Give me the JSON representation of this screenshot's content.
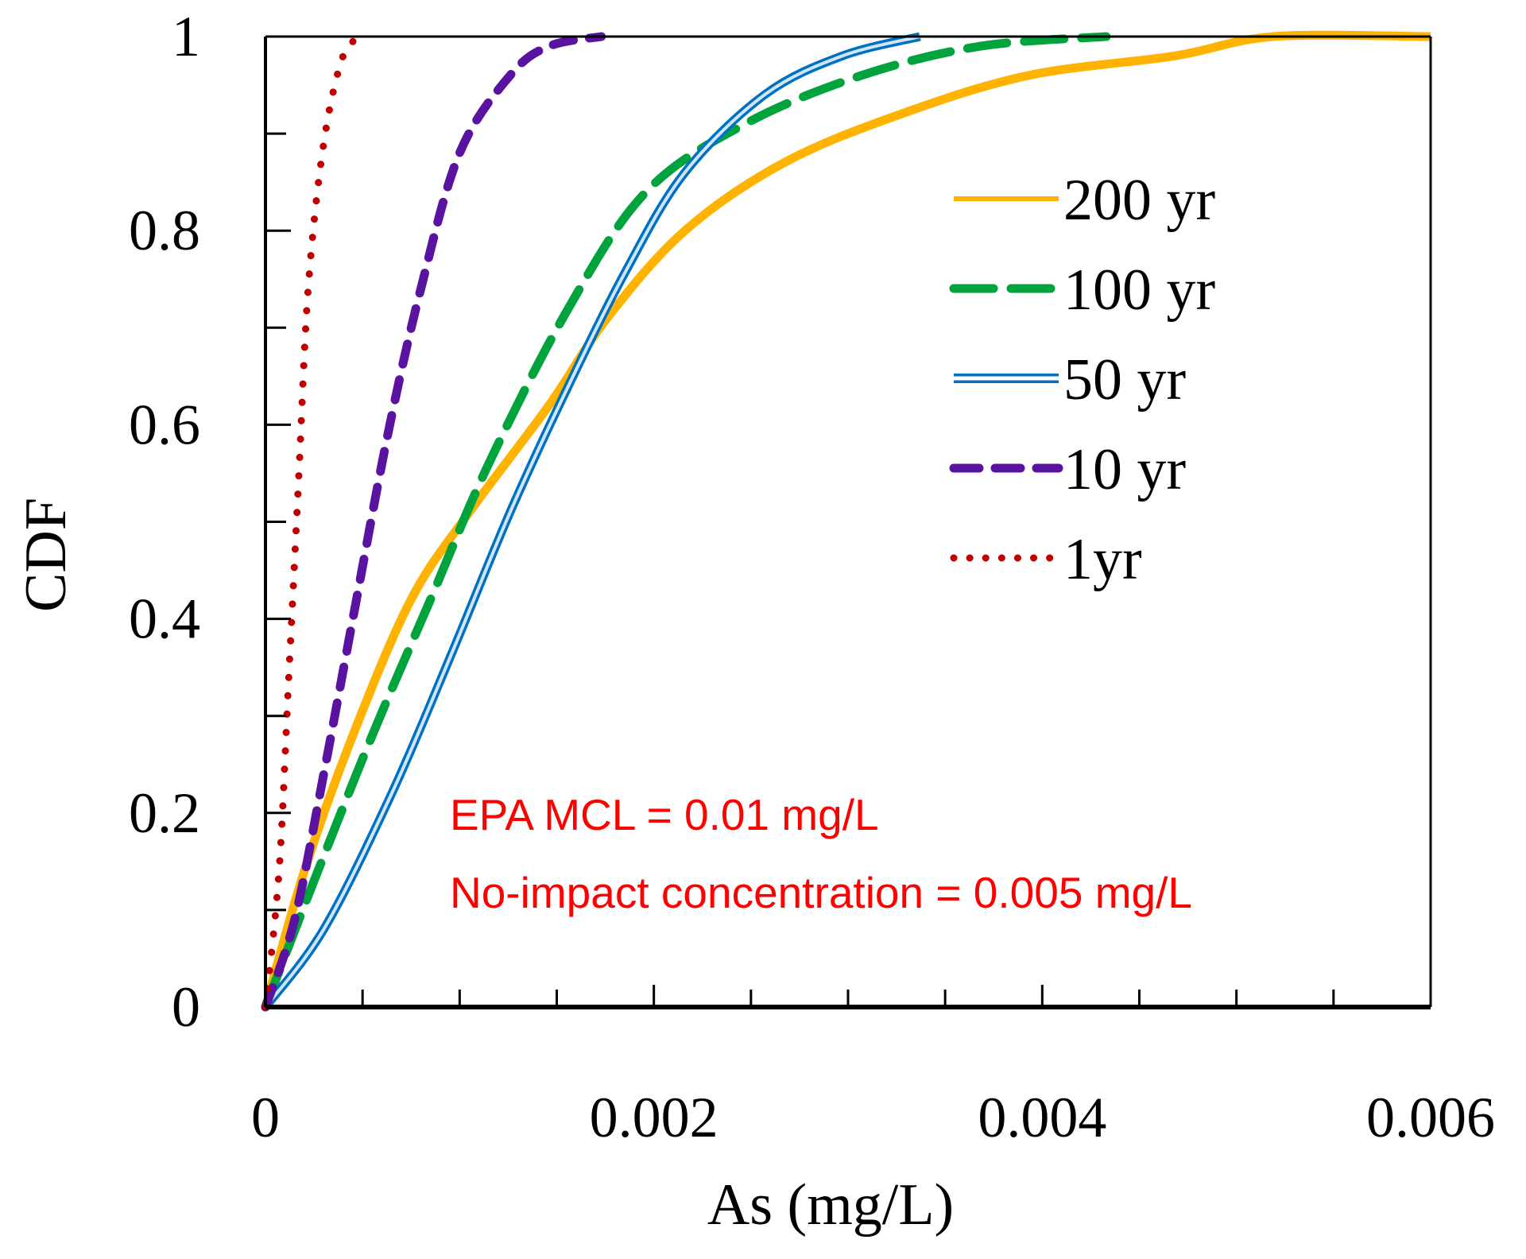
{
  "chart_data": {
    "type": "line",
    "title": "",
    "xlabel": "As (mg/L)",
    "ylabel": "CDF",
    "xlim": [
      0,
      0.006
    ],
    "ylim": [
      0,
      1
    ],
    "x_ticks": [
      "0",
      "0.002",
      "0.004",
      "0.006"
    ],
    "y_ticks": [
      "0",
      "0.2",
      "0.4",
      "0.6",
      "0.8",
      "1"
    ],
    "grid": false,
    "legend_position": "top-right",
    "annotations": [
      "EPA MCL = 0.01 mg/L",
      "No-impact concentration = 0.005 mg/L"
    ],
    "annotation_color": "#FF0000",
    "series": [
      {
        "name": "200 yr",
        "color": "#FFB300",
        "style": "solid",
        "x": [
          0,
          0.0002,
          0.00045,
          0.00075,
          0.00105,
          0.00146,
          0.00176,
          0.00216,
          0.00267,
          0.00327,
          0.00393,
          0.00468,
          0.00519,
          0.006
        ],
        "y": [
          0,
          0.14,
          0.28,
          0.42,
          0.51,
          0.62,
          0.71,
          0.8,
          0.87,
          0.92,
          0.96,
          0.98,
          1.0,
          1.0
        ]
      },
      {
        "name": "100 yr",
        "color": "#00A33C",
        "style": "longdash",
        "x": [
          0,
          0.00025,
          0.00055,
          0.00085,
          0.00115,
          0.00156,
          0.00196,
          0.00247,
          0.00307,
          0.00368,
          0.00433
        ],
        "y": [
          0,
          0.13,
          0.28,
          0.42,
          0.56,
          0.72,
          0.84,
          0.91,
          0.96,
          0.99,
          1.0
        ]
      },
      {
        "name": "50 yr",
        "color": "#0070C0",
        "style": "double",
        "x": [
          0,
          0.0003,
          0.00065,
          0.00095,
          0.00126,
          0.00156,
          0.00186,
          0.00216,
          0.00257,
          0.00297,
          0.00337
        ],
        "y": [
          0,
          0.08,
          0.22,
          0.36,
          0.51,
          0.64,
          0.76,
          0.86,
          0.94,
          0.98,
          1.0
        ]
      },
      {
        "name": "10 yr",
        "color": "#5A12A0",
        "style": "dash",
        "x": [
          0,
          0.00015,
          0.0003,
          0.00045,
          0.00063,
          0.0008,
          0.001,
          0.00126,
          0.00146,
          0.00173
        ],
        "y": [
          0,
          0.09,
          0.24,
          0.4,
          0.59,
          0.74,
          0.88,
          0.96,
          0.99,
          1.0
        ]
      },
      {
        "name": "1yr",
        "color": "#C00000",
        "style": "dot",
        "x": [
          0,
          7e-05,
          0.00012,
          0.00017,
          0.00022,
          0.0003,
          0.0004,
          0.0005
        ],
        "y": [
          0,
          0.14,
          0.34,
          0.54,
          0.74,
          0.89,
          0.98,
          1.0
        ]
      }
    ]
  }
}
